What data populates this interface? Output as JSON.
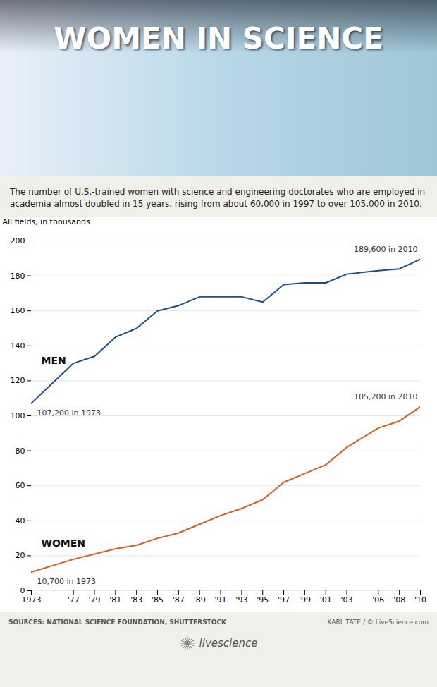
{
  "chart_data": {
    "type": "line",
    "title": "WOMEN IN SCIENCE",
    "subtitle": [
      "The number of U.S.-trained women with science and engineering doctorates who are employed in",
      "academia almost doubled in 15 years, rising from about 60,000 in 1997 to over 105,000 in 2010."
    ],
    "ylabel": "All fields, in thousands",
    "x": [
      1973,
      1977,
      1979,
      1981,
      1983,
      1985,
      1987,
      1989,
      1991,
      1993,
      1995,
      1997,
      1999,
      2001,
      2003,
      2006,
      2008,
      2010
    ],
    "series": [
      {
        "name": "MEN",
        "color": "#1a4f8a",
        "values": [
          107.2,
          130,
          134,
          145,
          150,
          160,
          163,
          168,
          168,
          168,
          165,
          175,
          176,
          176,
          181,
          183,
          184,
          189.6
        ]
      },
      {
        "name": "WOMEN",
        "color": "#d95f1e",
        "values": [
          10.7,
          18,
          21,
          24,
          26,
          30,
          33,
          38,
          43,
          47,
          52,
          62,
          67,
          72,
          82,
          93,
          97,
          105.2
        ]
      }
    ],
    "annotations": [
      "107,200 in 1973",
      "189,600 in 2010",
      "10,700 in 1973",
      "105,200 in 2010"
    ],
    "xlim": [
      1973,
      2010
    ],
    "xticks": [
      1973,
      {
        "value": 1977,
        "label": "'77"
      },
      {
        "value": 1979,
        "label": "'79"
      },
      {
        "value": 1981,
        "label": "'81"
      },
      {
        "value": 1983,
        "label": "'83"
      },
      {
        "value": 1985,
        "label": "'85"
      },
      {
        "value": 1987,
        "label": "'87"
      },
      {
        "value": 1989,
        "label": "'89"
      },
      {
        "value": 1991,
        "label": "'91"
      },
      {
        "value": 1993,
        "label": "'93"
      },
      {
        "value": 1995,
        "label": "'95"
      },
      {
        "value": 1997,
        "label": "'97"
      },
      {
        "value": 1999,
        "label": "'99"
      },
      {
        "value": 2001,
        "label": "'01"
      },
      {
        "value": 2003,
        "label": "'03"
      },
      {
        "value": 2006,
        "label": "'06"
      },
      {
        "value": 2008,
        "label": "'08"
      },
      {
        "value": 2010,
        "label": "'10"
      }
    ],
    "ylim": [
      0,
      200
    ],
    "yticks": [
      0,
      20,
      40,
      60,
      80,
      100,
      120,
      140,
      160,
      180,
      200
    ],
    "grid": true,
    "footer": [
      "SOURCES: NATIONAL SCIENCE FOUNDATION, SHUTTERSTOCK",
      "KARL TATE / © LiveScience.com",
      "livescience"
    ]
  }
}
